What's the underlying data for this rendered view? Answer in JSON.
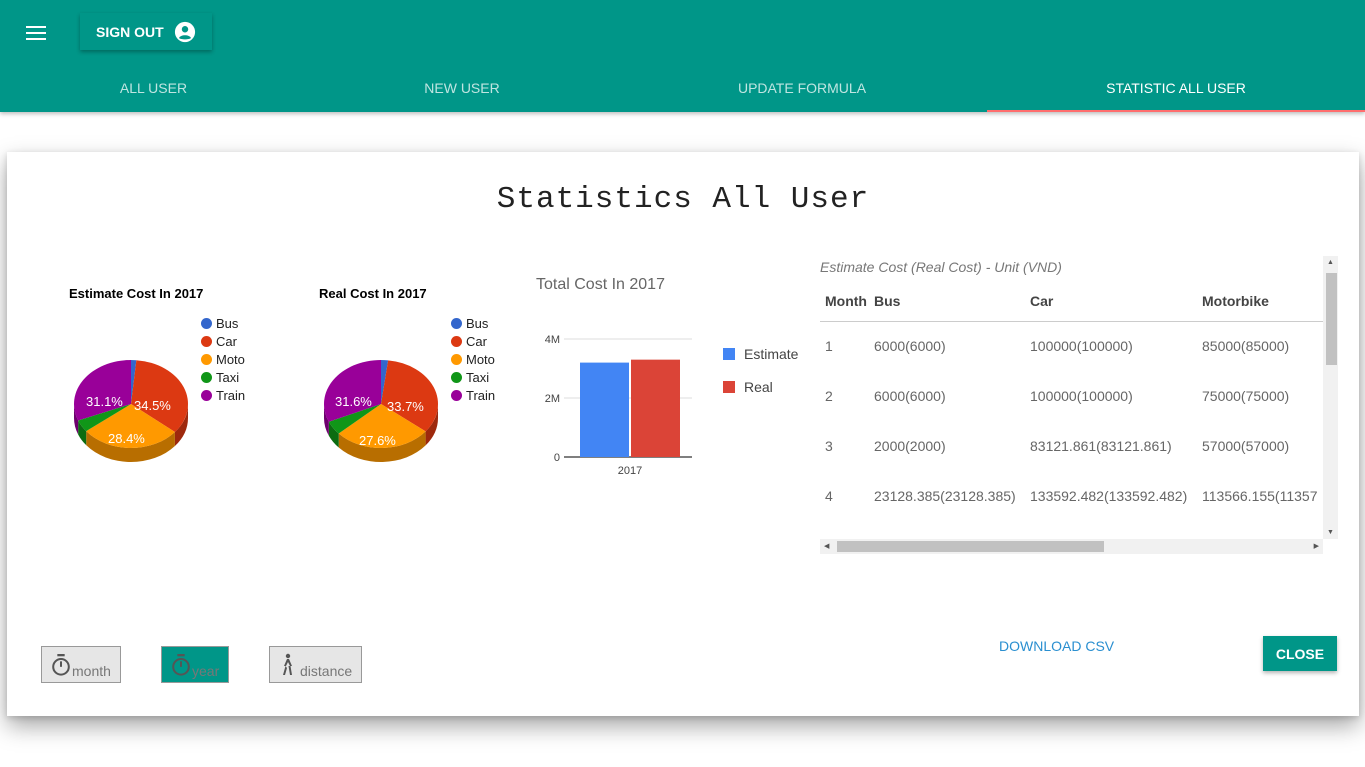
{
  "header": {
    "menu_icon": "hamburger-menu-icon",
    "signout_label": "SIGN OUT",
    "signout_icon": "account-circle-icon",
    "tabs": [
      {
        "label": "ALL USER",
        "active": false
      },
      {
        "label": "NEW USER",
        "active": false
      },
      {
        "label": "UPDATE FORMULA",
        "active": false
      },
      {
        "label": "STATISTIC ALL USER",
        "active": true
      }
    ]
  },
  "dialog": {
    "title": "Statistics All User",
    "table_caption": "Estimate Cost (Real Cost) - Unit (VND)",
    "table": {
      "columns": [
        "Month",
        "Bus",
        "Car",
        "Motorbike"
      ],
      "rows": [
        [
          "1",
          "6000(6000)",
          "100000(100000)",
          "85000(85000)"
        ],
        [
          "2",
          "6000(6000)",
          "100000(100000)",
          "75000(75000)"
        ],
        [
          "3",
          "2000(2000)",
          "83121.861(83121.861)",
          "57000(57000)"
        ],
        [
          "4",
          "23128.385(23128.385)",
          "133592.482(133592.482)",
          "113566.155(11357"
        ]
      ]
    },
    "buttons": {
      "month": "month",
      "year": "year",
      "distance": "distance",
      "download": "DOWNLOAD CSV",
      "close": "CLOSE"
    },
    "icons": {
      "month": "timer-icon",
      "year": "timer-icon",
      "distance": "walking-person-icon"
    },
    "active_period": "year"
  },
  "colors": {
    "primary": "#009688",
    "tab_indicator": "#ff6e6e",
    "bus": "#3366cc",
    "car": "#dc3912",
    "moto": "#ff9900",
    "taxi": "#109618",
    "train": "#990099",
    "estimate": "#4285f4",
    "real": "#db4437"
  },
  "chart_data": [
    {
      "type": "pie",
      "title": "Estimate Cost In 2017",
      "categories": [
        "Bus",
        "Car",
        "Moto",
        "Taxi",
        "Train"
      ],
      "values": [
        1.5,
        34.5,
        28.4,
        4.5,
        31.1
      ],
      "data_labels": [
        "",
        "34.5%",
        "28.4%",
        "",
        "31.1%"
      ],
      "legend": "right"
    },
    {
      "type": "pie",
      "title": "Real Cost In 2017",
      "categories": [
        "Bus",
        "Car",
        "Moto",
        "Taxi",
        "Train"
      ],
      "values": [
        2.0,
        33.7,
        27.6,
        5.1,
        31.6
      ],
      "data_labels": [
        "",
        "33.7%",
        "27.6%",
        "",
        "31.6%"
      ],
      "legend": "right"
    },
    {
      "type": "bar",
      "title": "Total Cost In 2017",
      "categories": [
        "2017"
      ],
      "series": [
        {
          "name": "Estimate",
          "values": [
            3200000
          ]
        },
        {
          "name": "Real",
          "values": [
            3300000
          ]
        }
      ],
      "ytick_labels": [
        "0",
        "2M",
        "4M"
      ],
      "ylim": [
        0,
        4000000
      ],
      "grid": true,
      "legend": "right"
    }
  ]
}
